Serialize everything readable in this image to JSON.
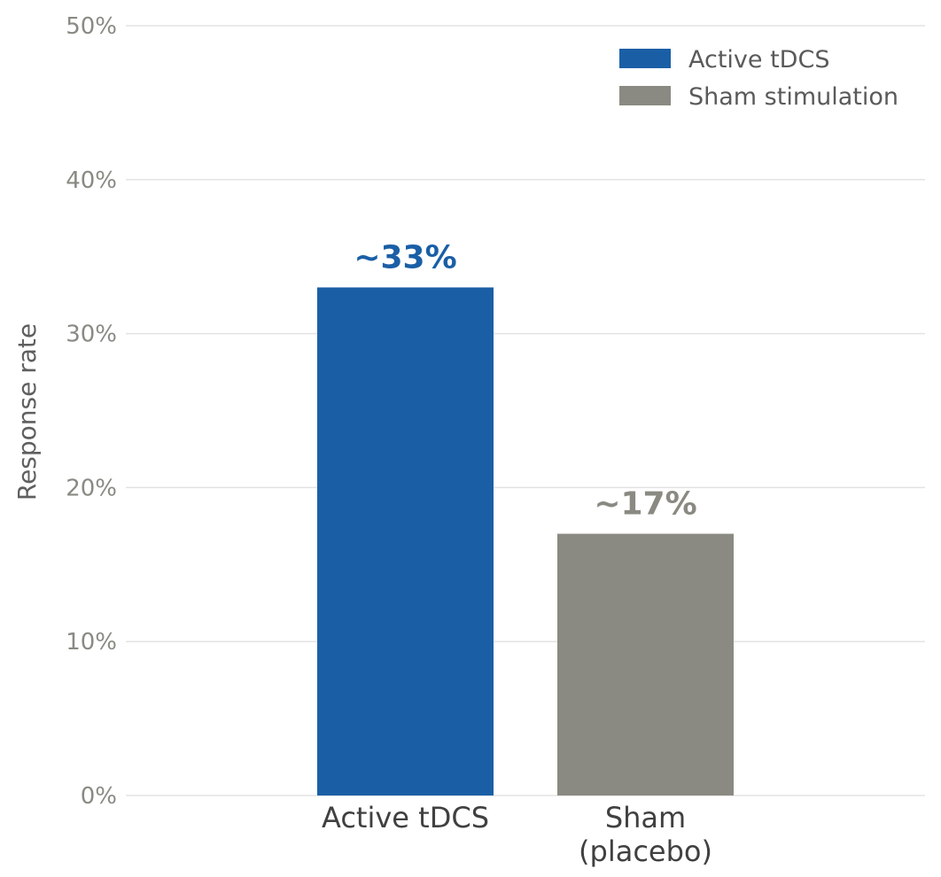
{
  "chart_data": {
    "type": "bar",
    "categories": [
      "Active tDCS",
      "Sham\n(placebo)"
    ],
    "values": [
      33,
      17
    ],
    "data_labels": [
      "~33%",
      "~17%"
    ],
    "colors": [
      "#1a5fa6",
      "#8a8a82"
    ],
    "ylabel": "Response rate",
    "ylim": [
      0,
      50
    ],
    "yticks": [
      0,
      10,
      20,
      30,
      40,
      50
    ],
    "ytick_labels": [
      "0%",
      "10%",
      "20%",
      "30%",
      "40%",
      "50%"
    ],
    "grid": true,
    "legend": {
      "position": "top-right",
      "entries": [
        {
          "label": "Active tDCS",
          "color": "#1a5fa6"
        },
        {
          "label": "Sham stimulation",
          "color": "#8a8a82"
        }
      ]
    }
  }
}
